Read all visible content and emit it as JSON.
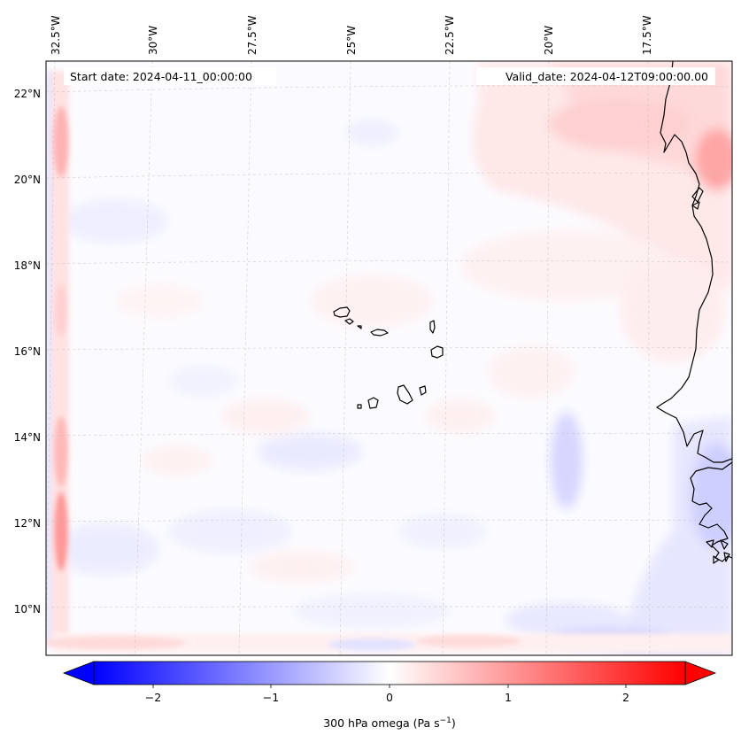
{
  "map": {
    "start_date": "Start date: 2024-04-11_00:00:00",
    "valid_date": "Valid_date: 2024-04-12T09:00:00.00",
    "lon_labels": [
      "32.5°W",
      "30°W",
      "27.5°W",
      "25°W",
      "22.5°W",
      "20°W",
      "17.5°W"
    ],
    "lat_labels": [
      "22°N",
      "20°N",
      "18°N",
      "16°N",
      "14°N",
      "12°N",
      "10°N"
    ],
    "colormap": "bwr",
    "colors": {
      "negative": "#0000ff",
      "zero": "#ffffff",
      "positive": "#ff0000",
      "coastline": "#000000"
    }
  },
  "colorbar": {
    "ticks": [
      "−2",
      "−1",
      "0",
      "1",
      "2"
    ],
    "label": "300 hPa omega (Pa s",
    "label_sup": "−1",
    "label_end": ")",
    "range": [
      -2.5,
      2.5
    ],
    "extend": "both"
  }
}
